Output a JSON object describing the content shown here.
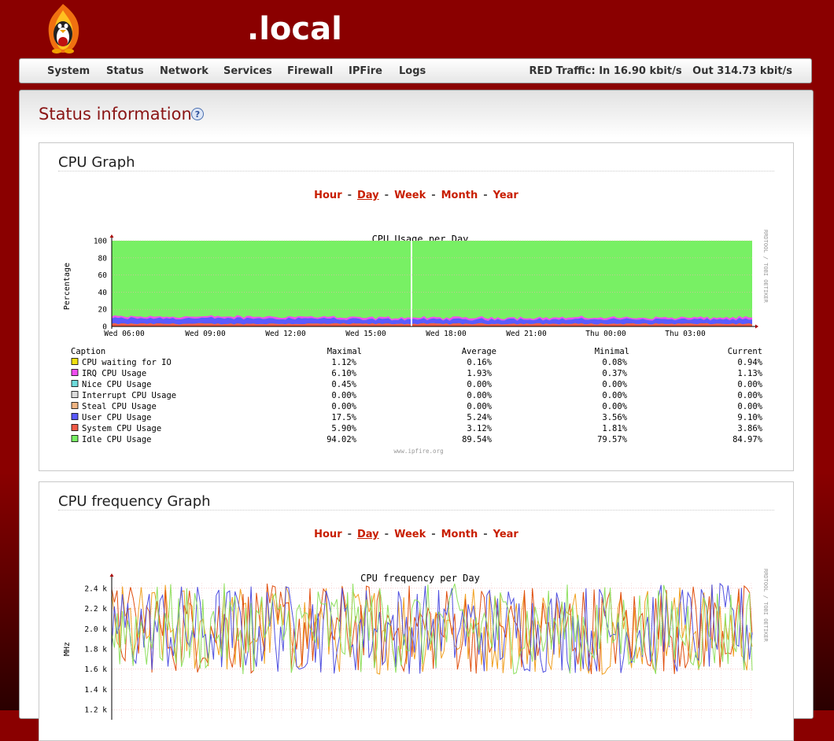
{
  "header": {
    "hostname": ".local"
  },
  "menu": {
    "items": [
      "System",
      "Status",
      "Network",
      "Services",
      "Firewall",
      "IPFire",
      "Logs"
    ],
    "traffic": "RED Traffic: In 16.90 kbit/s   Out 314.73 kbit/s"
  },
  "page": {
    "title": "Status information"
  },
  "cpu_graph": {
    "box_title": "CPU Graph",
    "periods": [
      "Hour",
      "Day",
      "Week",
      "Month",
      "Year"
    ],
    "active_period": "Day",
    "watermark": "RRDTOOL / TOBI OETIKER",
    "footer": "www.ipfire.org",
    "legend_headers": {
      "caption": "Caption",
      "max": "Maximal",
      "avg": "Average",
      "min": "Minimal",
      "cur": "Current"
    },
    "legend": [
      {
        "name": "CPU waiting for IO",
        "color": "#f0e010",
        "max": "1.12%",
        "avg": "0.16%",
        "min": "0.08%",
        "cur": "0.94%"
      },
      {
        "name": "IRQ CPU Usage",
        "color": "#f04ef0",
        "max": "6.10%",
        "avg": "1.93%",
        "min": "0.37%",
        "cur": "1.13%"
      },
      {
        "name": "Nice CPU Usage",
        "color": "#6edcdc",
        "max": "0.45%",
        "avg": "0.00%",
        "min": "0.00%",
        "cur": "0.00%"
      },
      {
        "name": "Interrupt CPU Usage",
        "color": "#dcdcdc",
        "max": "0.00%",
        "avg": "0.00%",
        "min": "0.00%",
        "cur": "0.00%"
      },
      {
        "name": "Steal CPU Usage",
        "color": "#f0b482",
        "max": "0.00%",
        "avg": "0.00%",
        "min": "0.00%",
        "cur": "0.00%"
      },
      {
        "name": "User CPU Usage",
        "color": "#5a5aff",
        "max": "17.5%",
        "avg": "5.24%",
        "min": "3.56%",
        "cur": "9.10%"
      },
      {
        "name": "System CPU Usage",
        "color": "#f05a46",
        "max": "5.90%",
        "avg": "3.12%",
        "min": "1.81%",
        "cur": "3.86%"
      },
      {
        "name": "Idle CPU Usage",
        "color": "#78f064",
        "max": "94.02%",
        "avg": "89.54%",
        "min": "79.57%",
        "cur": "84.97%"
      }
    ],
    "chart_data": {
      "type": "area",
      "title": "CPU Usage per Day",
      "ylabel": "Percentage",
      "ylim": [
        0,
        100
      ],
      "yticks": [
        0,
        20,
        40,
        60,
        80,
        100
      ],
      "xticks": [
        "Wed 06:00",
        "Wed 09:00",
        "Wed 12:00",
        "Wed 15:00",
        "Wed 18:00",
        "Wed 21:00",
        "Thu 00:00",
        "Thu 03:00"
      ],
      "grid": true,
      "series": [
        {
          "name": "System CPU Usage",
          "avg": 3.12
        },
        {
          "name": "User CPU Usage",
          "avg": 5.24
        },
        {
          "name": "IRQ CPU Usage",
          "avg": 1.93
        },
        {
          "name": "Idle CPU Usage",
          "avg": 89.54
        }
      ]
    }
  },
  "freq_graph": {
    "box_title": "CPU frequency Graph",
    "periods": [
      "Hour",
      "Day",
      "Week",
      "Month",
      "Year"
    ],
    "active_period": "Day",
    "watermark": "RRDTOOL / TOBI OETIKER",
    "chart_data": {
      "type": "line",
      "title": "CPU frequency per Day",
      "ylabel": "MHz",
      "ylim": [
        1.1,
        2.5
      ],
      "yticks": [
        "1.2 k",
        "1.4 k",
        "1.6 k",
        "1.8 k",
        "2.0 k",
        "2.2 k",
        "2.4 k"
      ],
      "ytick_values": [
        1.2,
        1.4,
        1.6,
        1.8,
        2.0,
        2.2,
        2.4
      ],
      "grid": true,
      "series_colors": [
        "#f0a020",
        "#e05010",
        "#5050e0",
        "#90e060"
      ]
    }
  }
}
